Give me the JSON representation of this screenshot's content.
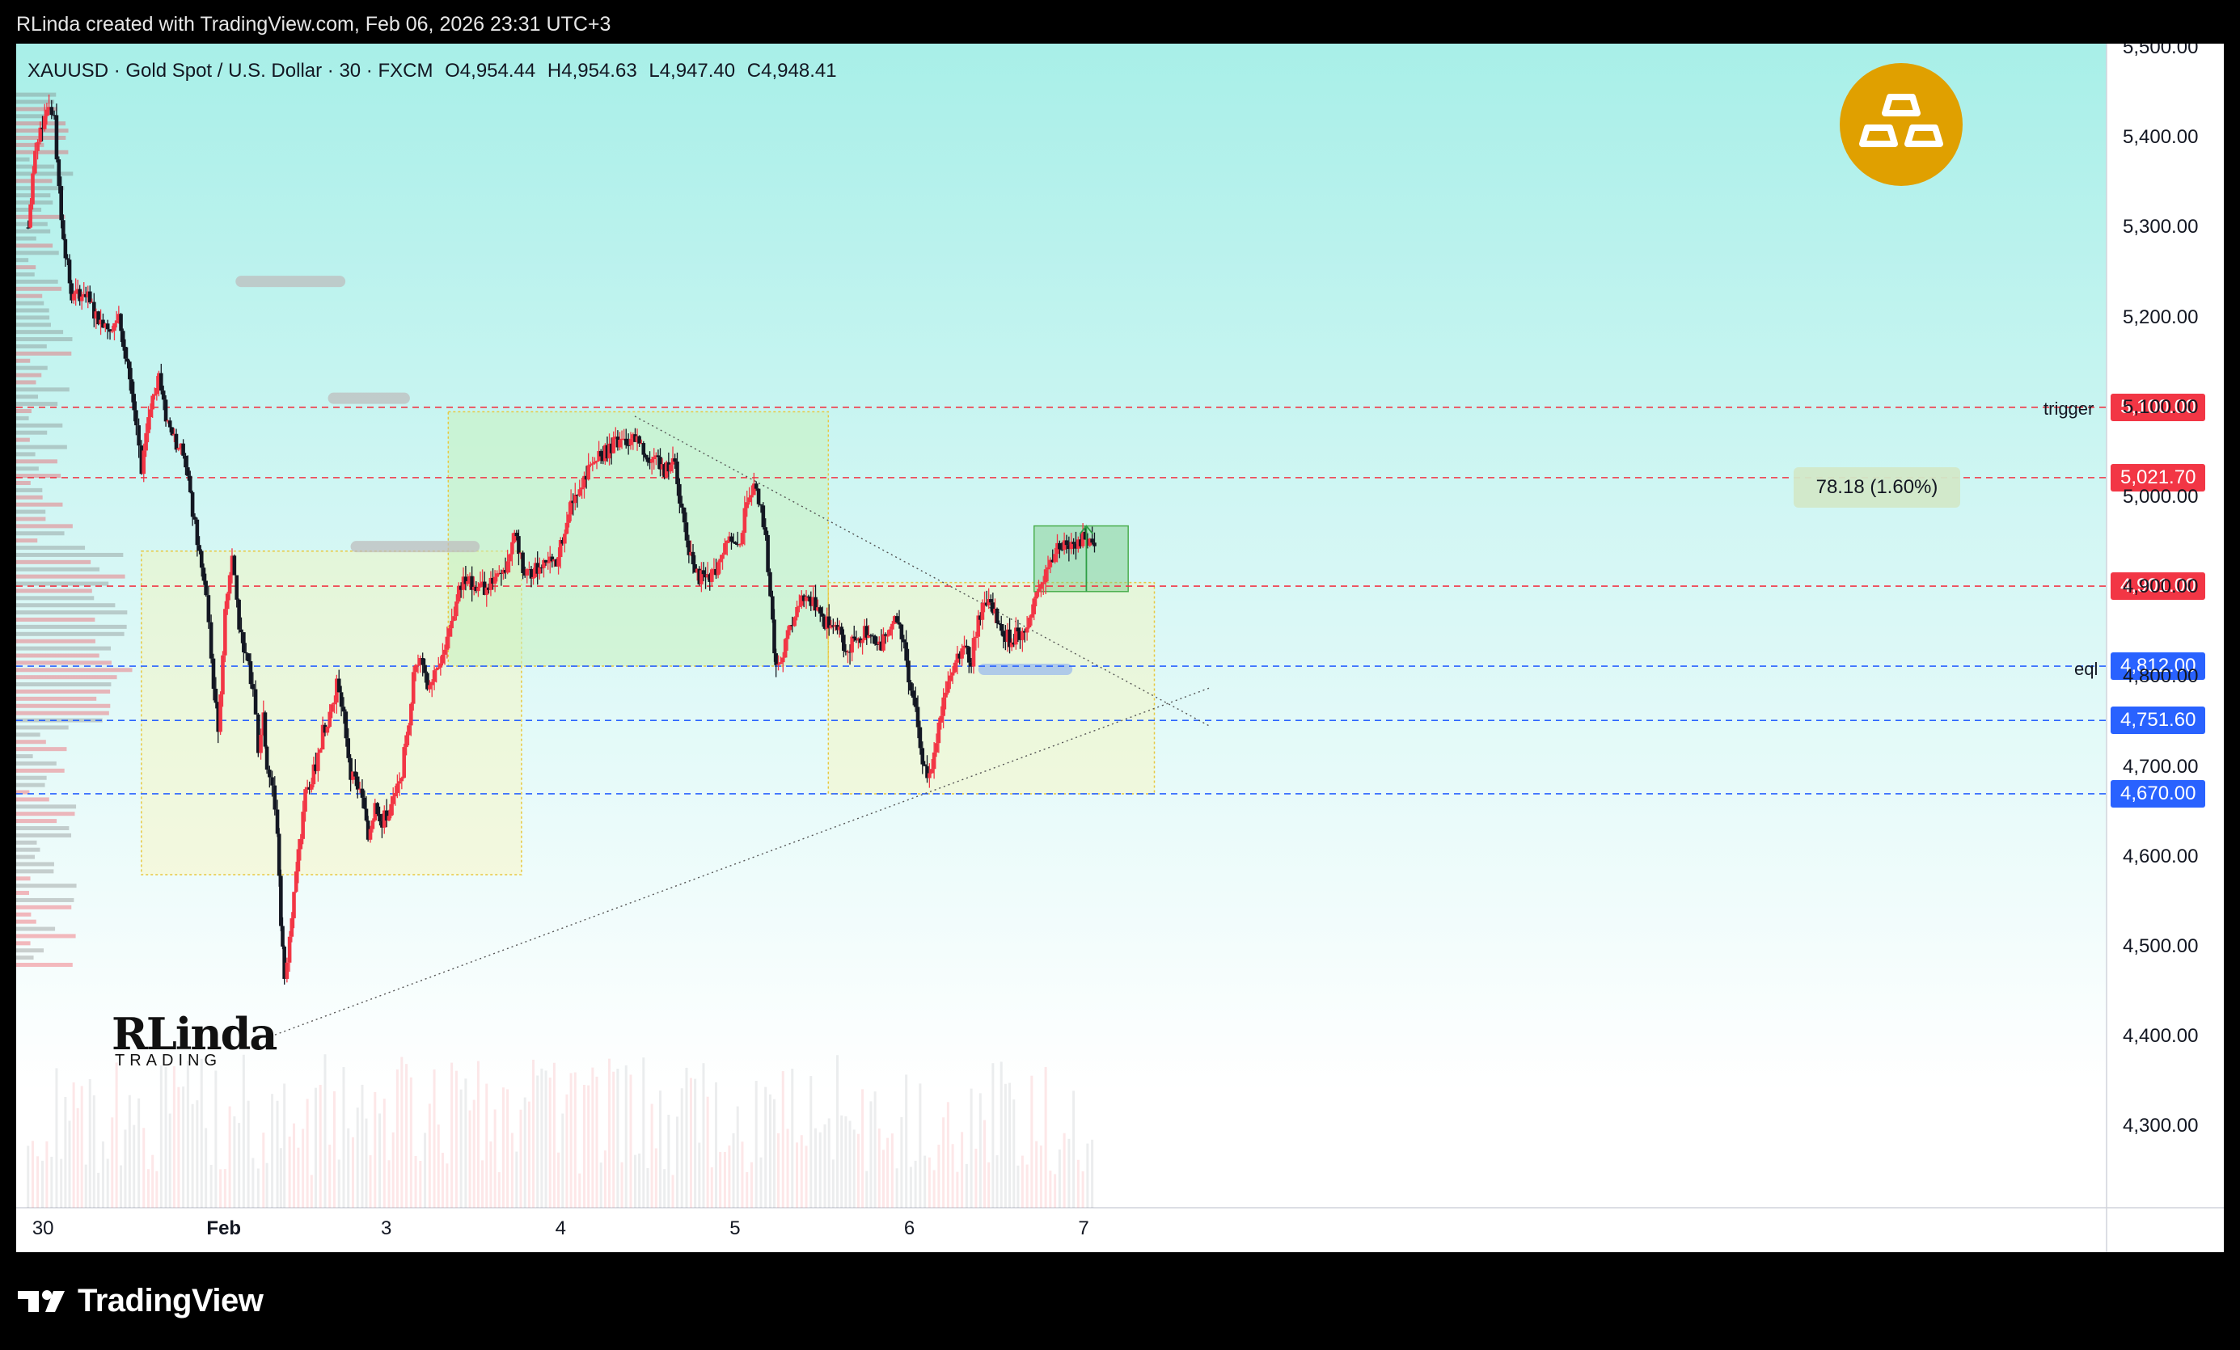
{
  "header": {
    "credit": "RLinda created with TradingView.com, Feb 06, 2026 23:31 UTC+3"
  },
  "legend": {
    "symbol": "XAUUSD · Gold Spot / U.S. Dollar · 30 · FXCM",
    "open": "O4,954.44",
    "high": "H4,954.63",
    "low": "L4,947.40",
    "close": "C4,948.41"
  },
  "footer": {
    "brand": "TradingView"
  },
  "watermark": {
    "line1": "RLinda",
    "line2": "TRADING"
  },
  "measure_label": "78.18 (1.60%)",
  "line_tags": {
    "trigger": "trigger",
    "eql": "eql"
  },
  "colors": {
    "up": "#f23645",
    "down": "#131722",
    "red_line": "#f23645",
    "blue_line": "#2962ff",
    "badge": "#e0a000",
    "background_top": "#b2f0ea"
  },
  "chart_data": {
    "type": "candlestick",
    "symbol": "XAUUSD",
    "timeframe": "30",
    "ylim": [
      4220,
      5500
    ],
    "y_ticks": [
      "5,500.00",
      "5,400.00",
      "5,300.00",
      "5,200.00",
      "5,100.00",
      "5,000.00",
      "4,900.00",
      "4,800.00",
      "4,700.00",
      "4,600.00",
      "4,500.00",
      "4,400.00",
      "4,300.00"
    ],
    "y_tick_values": [
      5500,
      5400,
      5300,
      5200,
      5100,
      5000,
      4900,
      4800,
      4700,
      4600,
      4500,
      4400,
      4300
    ],
    "x_ticks": [
      "30",
      "Feb",
      "3",
      "4",
      "5",
      "6",
      "7"
    ],
    "x_tick_positions_day": [
      0,
      1,
      2,
      3,
      4,
      5,
      6
    ],
    "horizontal_levels": [
      {
        "price": 5100.0,
        "label": "5,100.00",
        "color": "red",
        "tag": "trigger"
      },
      {
        "price": 5021.7,
        "label": "5,021.70",
        "color": "red"
      },
      {
        "price": 4901.0,
        "label": "4,901.00",
        "color": "red"
      },
      {
        "price": 4812.0,
        "label": "4,812.00",
        "color": "blue",
        "tag": "eql"
      },
      {
        "price": 4751.6,
        "label": "4,751.60",
        "color": "blue"
      },
      {
        "price": 4670.0,
        "label": "4,670.00",
        "color": "blue"
      }
    ],
    "zones": [
      {
        "x0": 0.58,
        "x1": 2.76,
        "y0": 4580,
        "y1": 4940,
        "color": "yellow"
      },
      {
        "x0": 2.34,
        "x1": 4.52,
        "y0": 4812,
        "y1": 5095,
        "color": "green"
      },
      {
        "x0": 4.52,
        "x1": 6.39,
        "y0": 4670,
        "y1": 4905,
        "color": "yellow"
      },
      {
        "x0": 5.7,
        "x1": 6.24,
        "y0": 4895,
        "y1": 4968,
        "color": "measure"
      }
    ],
    "trendlines": [
      {
        "from": [
          1.32,
          4400
        ],
        "to": [
          6.71,
          4788
        ]
      },
      {
        "from": [
          3.41,
          5090
        ],
        "to": [
          6.71,
          4745
        ]
      }
    ],
    "ohlc_path": [
      [
        -0.07,
        5300
      ],
      [
        -0.03,
        5380
      ],
      [
        0.0,
        5410
      ],
      [
        0.05,
        5440
      ],
      [
        0.08,
        5420
      ],
      [
        0.12,
        5310
      ],
      [
        0.18,
        5220
      ],
      [
        0.25,
        5230
      ],
      [
        0.32,
        5200
      ],
      [
        0.4,
        5190
      ],
      [
        0.45,
        5200
      ],
      [
        0.5,
        5150
      ],
      [
        0.55,
        5080
      ],
      [
        0.58,
        5020
      ],
      [
        0.62,
        5090
      ],
      [
        0.68,
        5140
      ],
      [
        0.72,
        5090
      ],
      [
        0.78,
        5060
      ],
      [
        0.82,
        5050
      ],
      [
        0.86,
        5000
      ],
      [
        0.9,
        4950
      ],
      [
        0.95,
        4890
      ],
      [
        0.98,
        4820
      ],
      [
        1.02,
        4740
      ],
      [
        1.06,
        4870
      ],
      [
        1.1,
        4940
      ],
      [
        1.14,
        4860
      ],
      [
        1.18,
        4820
      ],
      [
        1.22,
        4790
      ],
      [
        1.25,
        4720
      ],
      [
        1.28,
        4760
      ],
      [
        1.3,
        4700
      ],
      [
        1.33,
        4680
      ],
      [
        1.36,
        4630
      ],
      [
        1.38,
        4530
      ],
      [
        1.4,
        4460
      ],
      [
        1.43,
        4520
      ],
      [
        1.48,
        4600
      ],
      [
        1.52,
        4670
      ],
      [
        1.58,
        4700
      ],
      [
        1.62,
        4740
      ],
      [
        1.66,
        4760
      ],
      [
        1.7,
        4790
      ],
      [
        1.74,
        4760
      ],
      [
        1.78,
        4690
      ],
      [
        1.82,
        4680
      ],
      [
        1.86,
        4650
      ],
      [
        1.88,
        4620
      ],
      [
        1.92,
        4660
      ],
      [
        1.96,
        4640
      ],
      [
        2.0,
        4650
      ],
      [
        2.06,
        4680
      ],
      [
        2.1,
        4730
      ],
      [
        2.14,
        4800
      ],
      [
        2.18,
        4830
      ],
      [
        2.22,
        4790
      ],
      [
        2.26,
        4810
      ],
      [
        2.32,
        4830
      ],
      [
        2.36,
        4860
      ],
      [
        2.4,
        4900
      ],
      [
        2.44,
        4910
      ],
      [
        2.5,
        4900
      ],
      [
        2.56,
        4900
      ],
      [
        2.62,
        4920
      ],
      [
        2.68,
        4920
      ],
      [
        2.72,
        4960
      ],
      [
        2.78,
        4910
      ],
      [
        2.84,
        4920
      ],
      [
        2.9,
        4930
      ],
      [
        2.96,
        4920
      ],
      [
        3.02,
        4980
      ],
      [
        3.08,
        5010
      ],
      [
        3.12,
        5020
      ],
      [
        3.18,
        5040
      ],
      [
        3.24,
        5050
      ],
      [
        3.3,
        5060
      ],
      [
        3.36,
        5060
      ],
      [
        3.4,
        5070
      ],
      [
        3.46,
        5050
      ],
      [
        3.52,
        5040
      ],
      [
        3.58,
        5030
      ],
      [
        3.64,
        5040
      ],
      [
        3.68,
        4980
      ],
      [
        3.72,
        4940
      ],
      [
        3.78,
        4910
      ],
      [
        3.84,
        4910
      ],
      [
        3.9,
        4930
      ],
      [
        3.94,
        4960
      ],
      [
        4.0,
        4940
      ],
      [
        4.04,
        4980
      ],
      [
        4.08,
        5010
      ],
      [
        4.12,
        5000
      ],
      [
        4.16,
        4950
      ],
      [
        4.2,
        4860
      ],
      [
        4.22,
        4810
      ],
      [
        4.26,
        4830
      ],
      [
        4.3,
        4850
      ],
      [
        4.34,
        4880
      ],
      [
        4.38,
        4890
      ],
      [
        4.42,
        4880
      ],
      [
        4.46,
        4880
      ],
      [
        4.5,
        4860
      ],
      [
        4.56,
        4860
      ],
      [
        4.62,
        4830
      ],
      [
        4.68,
        4840
      ],
      [
        4.74,
        4850
      ],
      [
        4.8,
        4830
      ],
      [
        4.86,
        4850
      ],
      [
        4.9,
        4860
      ],
      [
        4.94,
        4850
      ],
      [
        4.98,
        4800
      ],
      [
        5.02,
        4760
      ],
      [
        5.06,
        4700
      ],
      [
        5.1,
        4690
      ],
      [
        5.14,
        4730
      ],
      [
        5.18,
        4780
      ],
      [
        5.22,
        4810
      ],
      [
        5.26,
        4820
      ],
      [
        5.3,
        4830
      ],
      [
        5.34,
        4820
      ],
      [
        5.38,
        4870
      ],
      [
        5.44,
        4880
      ],
      [
        5.5,
        4860
      ],
      [
        5.56,
        4840
      ],
      [
        5.62,
        4850
      ],
      [
        5.66,
        4860
      ],
      [
        5.7,
        4880
      ],
      [
        5.74,
        4900
      ],
      [
        5.78,
        4920
      ],
      [
        5.82,
        4940
      ],
      [
        5.86,
        4950
      ],
      [
        5.9,
        4950
      ],
      [
        5.94,
        4950
      ],
      [
        5.98,
        4955
      ],
      [
        6.02,
        4950
      ],
      [
        6.06,
        4948
      ]
    ]
  }
}
